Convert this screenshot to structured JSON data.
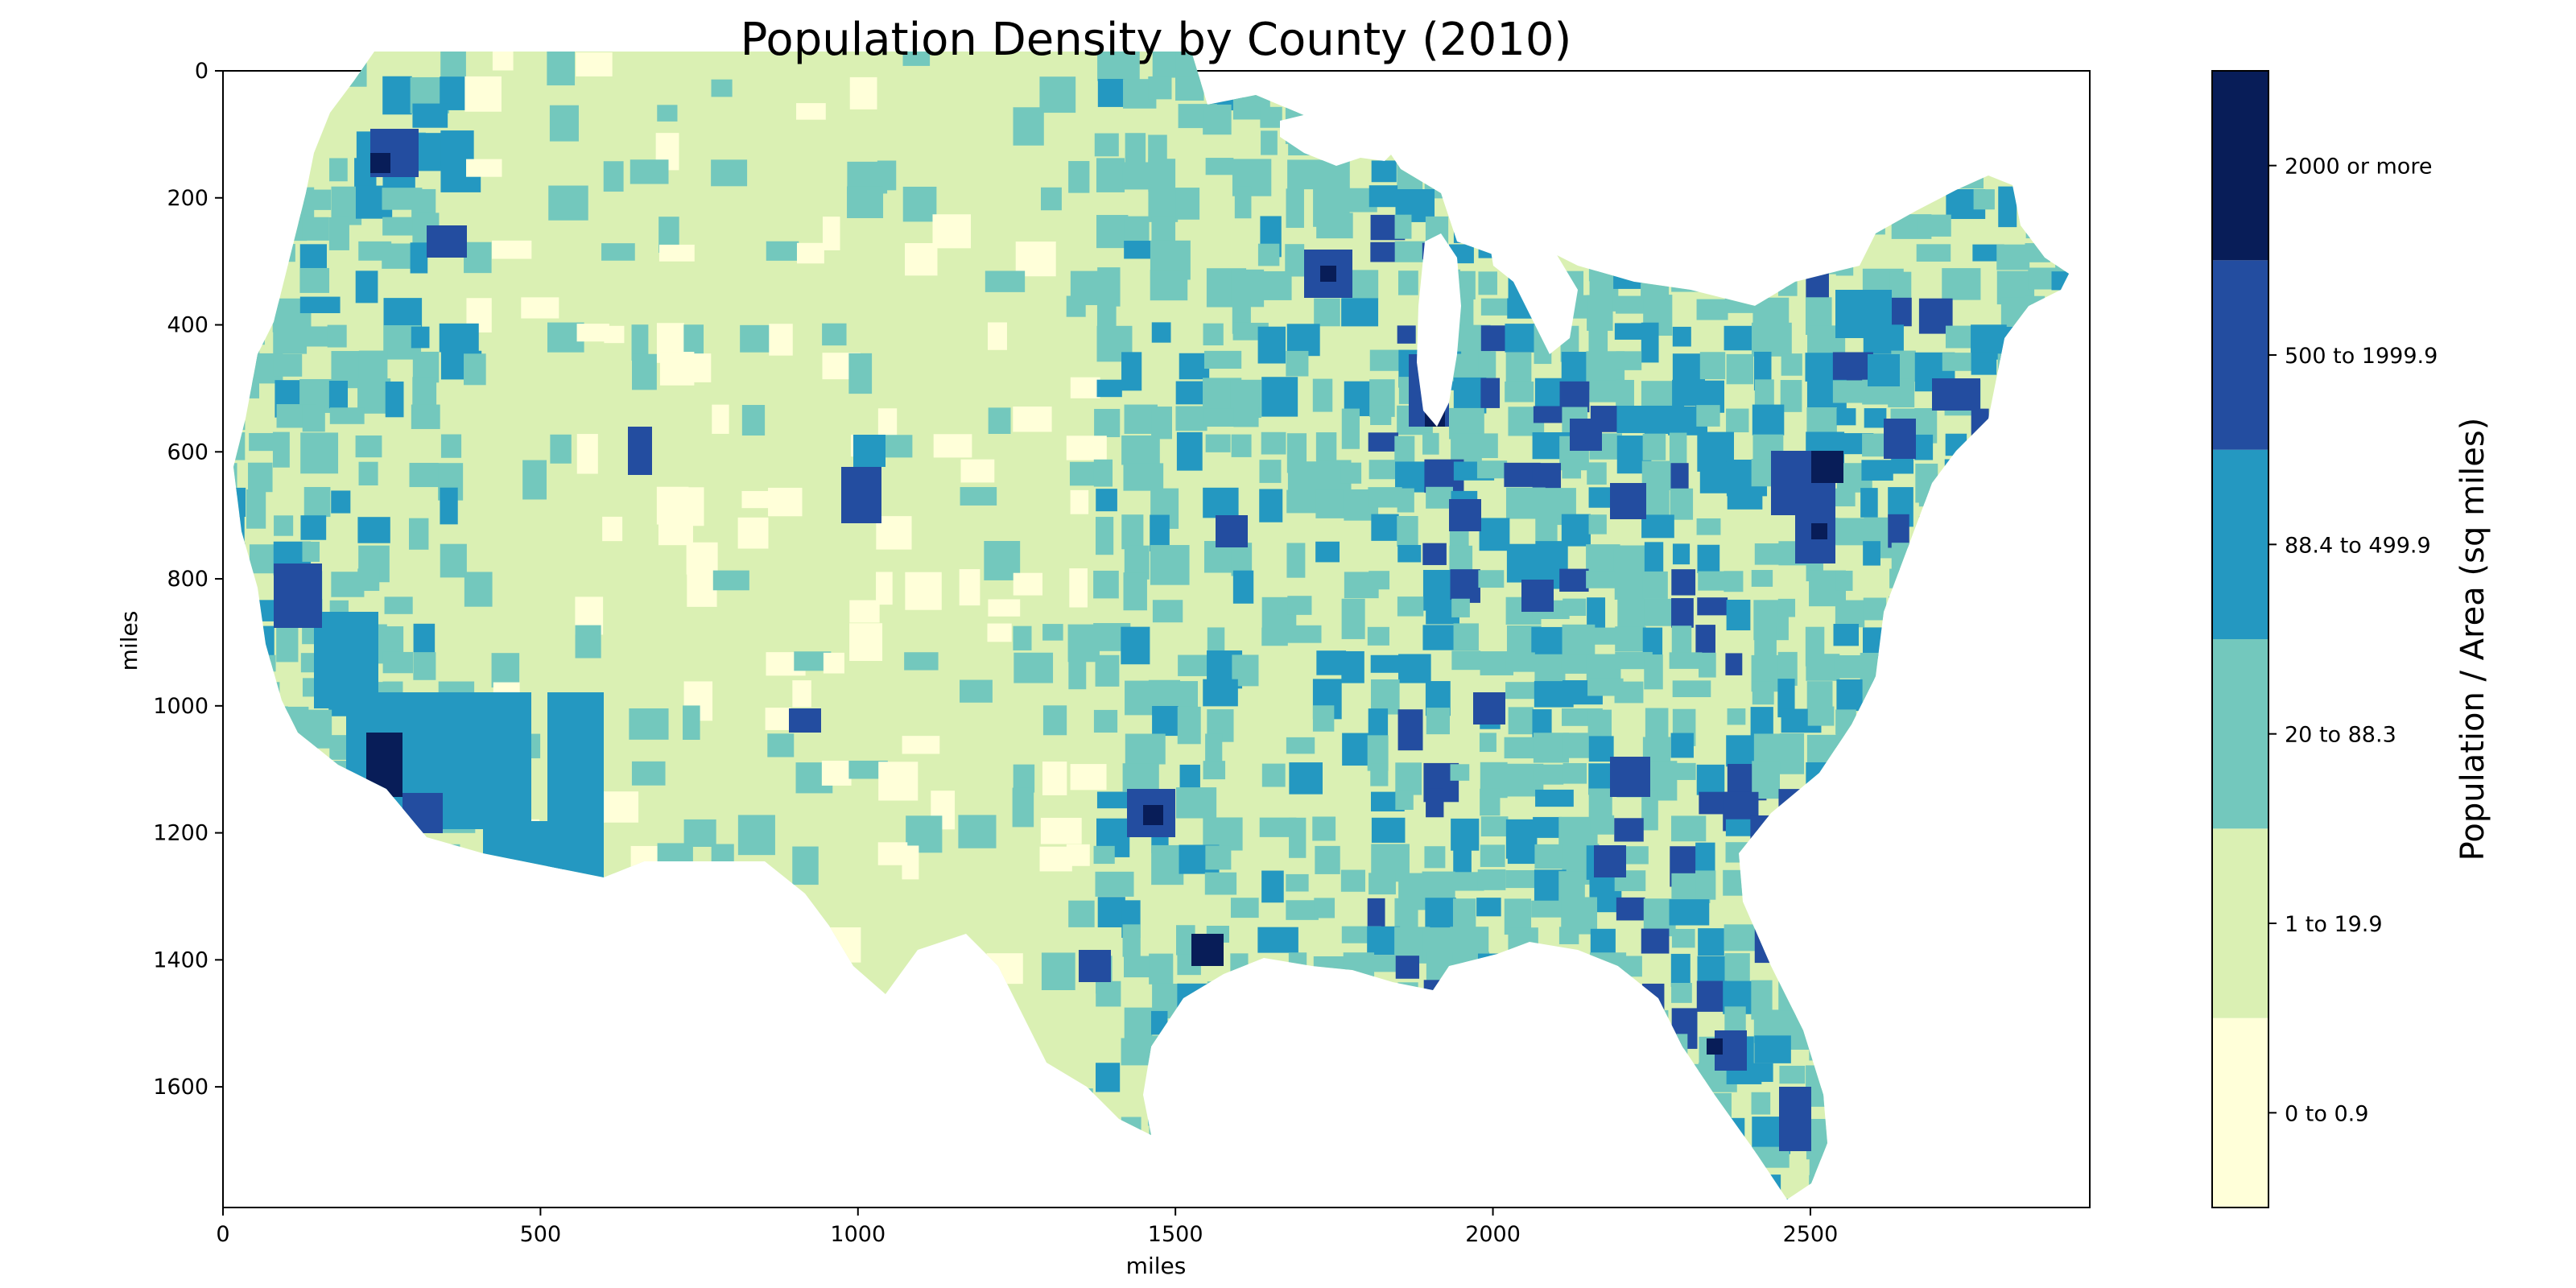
{
  "figure": {
    "title": "Population Density by County (2010)"
  },
  "map": {
    "xlabel": "miles",
    "ylabel": "miles",
    "xlim": [
      0,
      2940
    ],
    "ylim": [
      0,
      1790
    ],
    "y_inverted": true,
    "xticks": [
      "0",
      "500",
      "1000",
      "1500",
      "2000",
      "2500"
    ],
    "yticks": [
      "0",
      "200",
      "400",
      "600",
      "800",
      "1000",
      "1200",
      "1400",
      "1600"
    ],
    "background": "#ffffff"
  },
  "colorbar": {
    "label": "Population / Area (sq miles)",
    "classes": [
      {
        "label": "0 to 0.9",
        "color": "#ffffd9"
      },
      {
        "label": "1 to 19.9",
        "color": "#daf0b3"
      },
      {
        "label": "20 to 88.3",
        "color": "#73c8bd"
      },
      {
        "label": "88.4 to 499.9",
        "color": "#2498c1"
      },
      {
        "label": "500 to 1999.9",
        "color": "#234da0"
      },
      {
        "label": "2000 or more",
        "color": "#081d58"
      }
    ]
  }
}
